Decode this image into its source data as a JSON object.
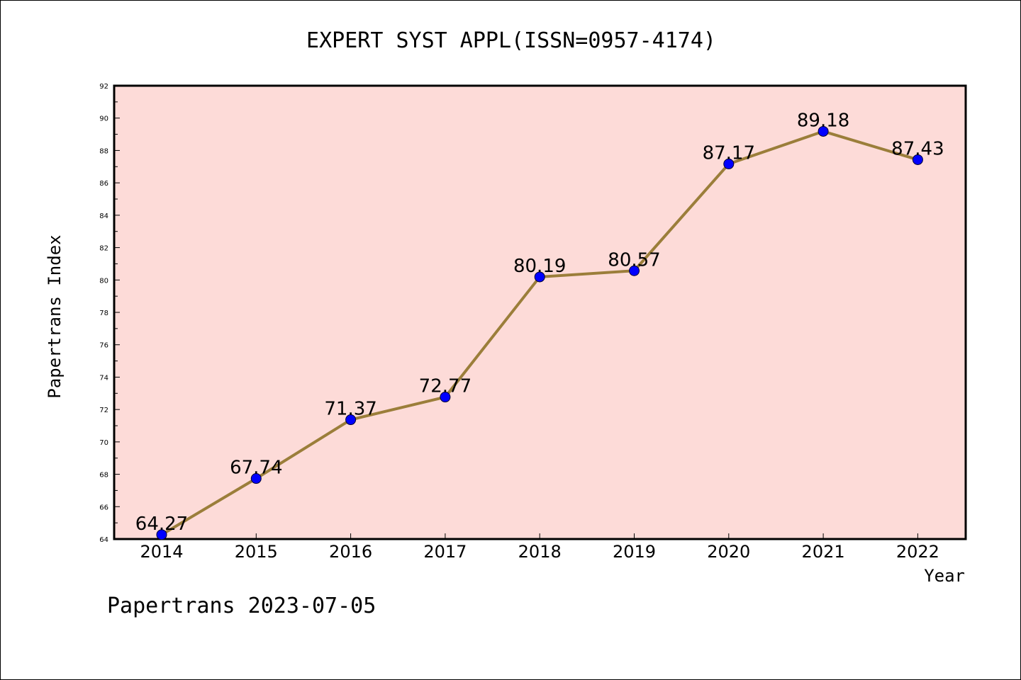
{
  "chart_data": {
    "type": "line",
    "title": "EXPERT SYST APPL(ISSN=0957-4174)",
    "xlabel": "Year",
    "ylabel": "Papertrans Index",
    "categories": [
      "2014",
      "2015",
      "2016",
      "2017",
      "2018",
      "2019",
      "2020",
      "2021",
      "2022"
    ],
    "values": [
      64.27,
      67.74,
      71.37,
      72.77,
      80.19,
      80.57,
      87.17,
      89.18,
      87.43
    ],
    "data_labels": [
      "64.27",
      "67.74",
      "71.37",
      "72.77",
      "80.19",
      "80.57",
      "87.17",
      "89.18",
      "87.43"
    ],
    "ylim": [
      64,
      92
    ],
    "yticks": [
      "64",
      "66",
      "68",
      "70",
      "72",
      "74",
      "76",
      "78",
      "80",
      "82",
      "84",
      "86",
      "88",
      "90",
      "92"
    ],
    "grid": false,
    "colors": {
      "plot_background": "#fddbd8",
      "line": "#9b7e3a",
      "marker": "#0000ff"
    }
  },
  "footer": "Papertrans 2023-07-05"
}
